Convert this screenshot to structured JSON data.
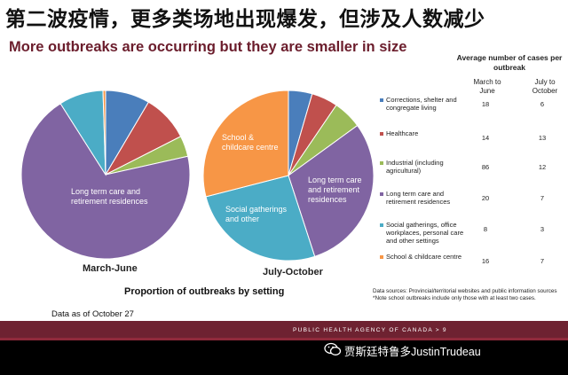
{
  "header": {
    "cn_title": "第二波疫情，更多类场地出现爆发，但涉及人数减少",
    "en_title": "More outbreaks are occurring but they are smaller in size"
  },
  "colors": {
    "corrections": "#4a7ebb",
    "healthcare": "#c0504d",
    "industrial": "#9bbb59",
    "ltc": "#8064a2",
    "social": "#4bacc6",
    "school": "#f79646",
    "title_red": "#6b1d2c"
  },
  "chart_data": [
    {
      "type": "pie",
      "title": "March-June",
      "slices": [
        {
          "name": "Corrections, shelter and congregate living",
          "value": 8.5,
          "label": ""
        },
        {
          "name": "Healthcare",
          "value": 9,
          "label": ""
        },
        {
          "name": "Industrial (including agricultural)",
          "value": 4,
          "label": ""
        },
        {
          "name": "Long term care and retirement residences",
          "value": 69.5,
          "label": "Long term care and retirement residences"
        },
        {
          "name": "Social gatherings, office workplaces, personal care and other settings",
          "value": 8.5,
          "label": ""
        },
        {
          "name": "School & childcare centre",
          "value": 0.5,
          "label": ""
        }
      ]
    },
    {
      "type": "pie",
      "title": "July-October",
      "slices": [
        {
          "name": "Corrections, shelter and congregate living",
          "value": 4.5,
          "label": ""
        },
        {
          "name": "Healthcare",
          "value": 5,
          "label": ""
        },
        {
          "name": "Industrial (including agricultural)",
          "value": 5.5,
          "label": ""
        },
        {
          "name": "Long term care and retirement residences",
          "value": 30,
          "label": "Long term care and retirement residences"
        },
        {
          "name": "Social gatherings, office workplaces, personal care and other settings",
          "value": 26,
          "label": "Social gatherings and other"
        },
        {
          "name": "School & childcare centre",
          "value": 29,
          "label": "School & childcare centre"
        }
      ]
    }
  ],
  "pie_caption": "Proportion of outbreaks by setting",
  "as_of": "Data as of October 27",
  "table": {
    "title": "Average number of cases per outbreak",
    "col1": "March to June",
    "col2": "July to October",
    "rows": [
      {
        "label": "Corrections, shelter and congregate living",
        "v1": "18",
        "v2": "6",
        "color": "#4a7ebb"
      },
      {
        "label": "Healthcare",
        "v1": "14",
        "v2": "13",
        "color": "#c0504d"
      },
      {
        "label": "Industrial (including agricultural)",
        "v1": "86",
        "v2": "12",
        "color": "#9bbb59"
      },
      {
        "label": "Long term care and retirement residences",
        "v1": "20",
        "v2": "7",
        "color": "#8064a2"
      },
      {
        "label": "Social gatherings, office workplaces, personal care and other settings",
        "v1": "8",
        "v2": "3",
        "color": "#4bacc6"
      },
      {
        "label": "School & childcare centre",
        "v1": "16",
        "v2": "7",
        "color": "#f79646"
      }
    ]
  },
  "sources": {
    "line1": "Data sources: Provincial/territorial websites and public information sources",
    "line2": "*Note school outbreaks include only those with at least two cases."
  },
  "footer": {
    "agency": "PUBLIC HEALTH AGENCY OF CANADA >  9",
    "watermark": "贾斯廷特鲁多JustinTrudeau"
  }
}
